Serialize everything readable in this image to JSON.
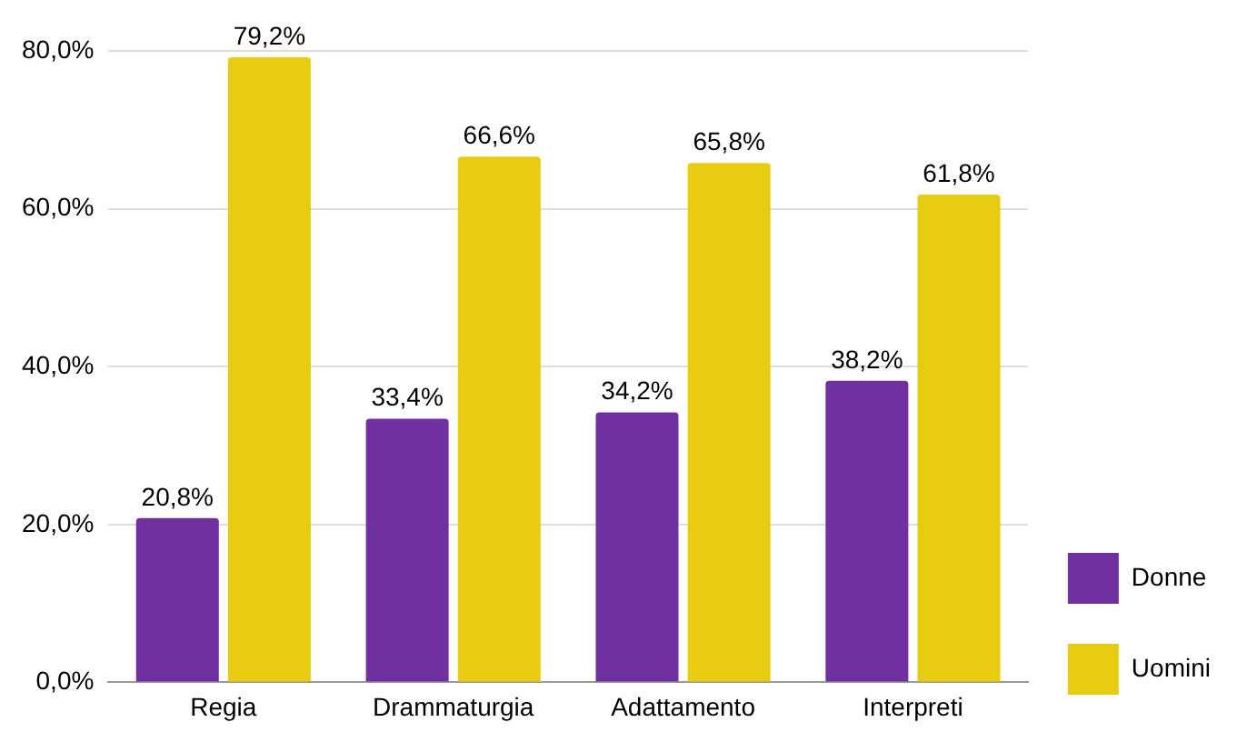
{
  "chart_data": {
    "type": "bar",
    "categories": [
      "Regia",
      "Drammaturgia",
      "Adattamento",
      "Interpreti"
    ],
    "series": [
      {
        "name": "Donne",
        "color": "#7030a0",
        "values": [
          20.8,
          33.4,
          34.2,
          38.2
        ],
        "value_labels": [
          "20,8%",
          "33,4%",
          "34,2%",
          "38,2%"
        ]
      },
      {
        "name": "Uomini",
        "color": "#e8cc12",
        "values": [
          79.2,
          66.6,
          65.8,
          61.8
        ],
        "value_labels": [
          "79,2%",
          "66,6%",
          "65,8%",
          "61,8%"
        ]
      }
    ],
    "ylim": [
      0,
      80
    ],
    "yticks": [
      {
        "value": 0,
        "label": "0,0%"
      },
      {
        "value": 20,
        "label": "20,0%"
      },
      {
        "value": 40,
        "label": "40,0%"
      },
      {
        "value": 60,
        "label": "60,0%"
      },
      {
        "value": 80,
        "label": "80,0%"
      }
    ],
    "grid": "y",
    "legend": "bottom right"
  }
}
